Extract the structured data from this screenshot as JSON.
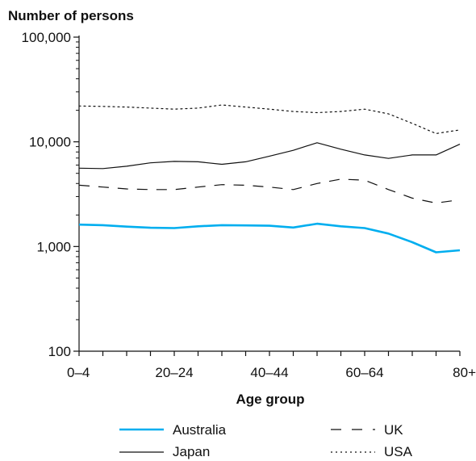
{
  "chart_data": {
    "type": "line",
    "ylabel": "Number of persons",
    "xlabel": "Age group",
    "yscale": "log",
    "ylim": [
      100,
      100000
    ],
    "yticks": [
      100,
      1000,
      10000,
      100000
    ],
    "ytick_labels": [
      "100",
      "1,000",
      "10,000",
      "100,000"
    ],
    "x_positions": 17,
    "xtick_labels": [
      {
        "label": "0–4",
        "index": 0
      },
      {
        "label": "20–24",
        "index": 4
      },
      {
        "label": "40–44",
        "index": 8
      },
      {
        "label": "60–64",
        "index": 12
      },
      {
        "label": "80+",
        "index": 16
      }
    ],
    "series": [
      {
        "name": "Australia",
        "color": "#00aeef",
        "dash": "solid",
        "values": [
          1620,
          1600,
          1550,
          1510,
          1500,
          1560,
          1600,
          1590,
          1580,
          1520,
          1650,
          1560,
          1500,
          1330,
          1100,
          880,
          920
        ]
      },
      {
        "name": "Japan",
        "color": "#111111",
        "dash": "solid",
        "values": [
          5600,
          5550,
          5850,
          6300,
          6500,
          6450,
          6100,
          6450,
          7300,
          8300,
          9800,
          8500,
          7500,
          6950,
          7500,
          7500,
          9500
        ]
      },
      {
        "name": "UK",
        "color": "#111111",
        "dash": "dashed",
        "values": [
          3850,
          3700,
          3550,
          3500,
          3500,
          3700,
          3900,
          3850,
          3700,
          3500,
          4000,
          4400,
          4300,
          3500,
          2900,
          2600,
          2800
        ]
      },
      {
        "name": "USA",
        "color": "#111111",
        "dash": "dotted",
        "values": [
          22000,
          21800,
          21500,
          21000,
          20500,
          21000,
          22500,
          21500,
          20500,
          19500,
          19000,
          19500,
          20500,
          18500,
          15000,
          12000,
          13000
        ]
      }
    ],
    "legend": [
      {
        "name": "Australia",
        "dash": "solid",
        "color": "#00aeef"
      },
      {
        "name": "UK",
        "dash": "dashed",
        "color": "#111111"
      },
      {
        "name": "Japan",
        "dash": "solid",
        "color": "#111111"
      },
      {
        "name": "USA",
        "dash": "dotted",
        "color": "#111111"
      }
    ],
    "legend_position": "bottom",
    "grid": false
  }
}
